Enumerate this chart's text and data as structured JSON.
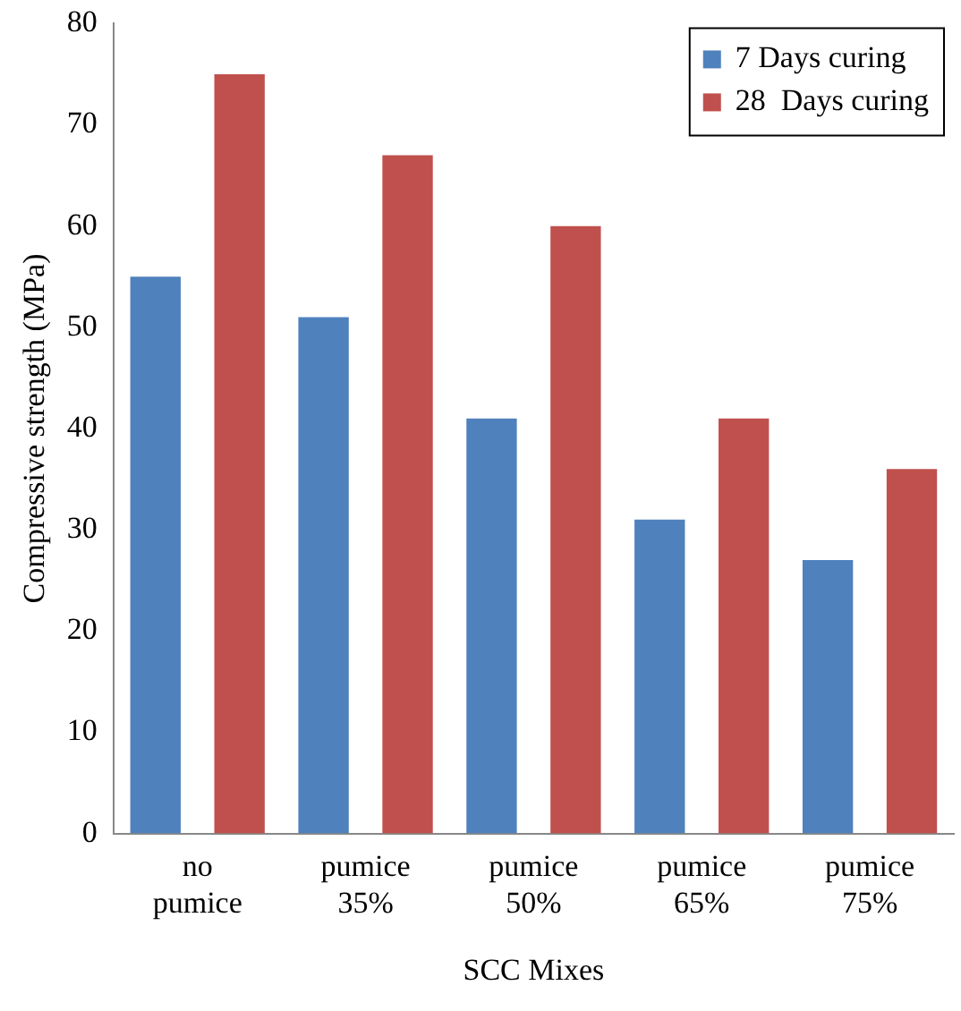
{
  "chart_data": {
    "type": "bar",
    "xlabel": "SCC Mixes",
    "ylabel": "Compressive strength (MPa)",
    "categories": [
      "no pumice",
      "pumice 35%",
      "pumice 50%",
      "pumice 65%",
      "pumice 75%"
    ],
    "series": [
      {
        "name": "7 Days curing",
        "color": "#4f81bd",
        "values": [
          55,
          51,
          41,
          31,
          27
        ]
      },
      {
        "name": "28  Days curing",
        "color": "#c0504d",
        "values": [
          75,
          67,
          60,
          41,
          36
        ]
      }
    ],
    "ylim": [
      0,
      80
    ],
    "yticks": [
      0,
      10,
      20,
      30,
      40,
      50,
      60,
      70,
      80
    ],
    "grid": false,
    "legend": "top right"
  }
}
